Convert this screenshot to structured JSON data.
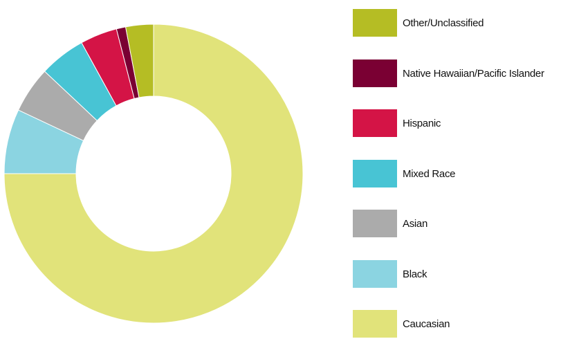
{
  "chart_data": {
    "type": "pie",
    "variant": "donut",
    "title": "",
    "legend_position": "right",
    "categories": [
      "Caucasian",
      "Black",
      "Asian",
      "Mixed Race",
      "Hispanic",
      "Native Hawaiian/Pacific Islander",
      "Other/Unclassified"
    ],
    "values": [
      75,
      7,
      5,
      5,
      4,
      1,
      3
    ],
    "colors": [
      "#e1e37a",
      "#8bd4e1",
      "#ababab",
      "#48c4d4",
      "#d41446",
      "#7a0033",
      "#b5bd24"
    ],
    "legend_order": [
      6,
      5,
      4,
      3,
      2,
      1,
      0
    ]
  }
}
